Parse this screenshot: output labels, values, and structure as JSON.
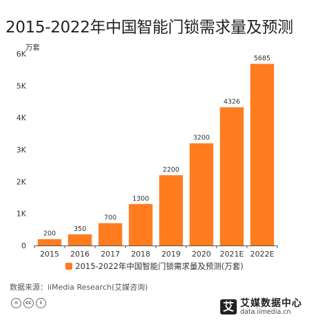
{
  "title": "2015-2022年中国智能门锁需求量及预测",
  "chart_data": {
    "type": "bar",
    "title": "2015-2022年中国智能门锁需求量及预测",
    "unit_label": "万套",
    "categories": [
      "2015",
      "2016",
      "2017",
      "2018",
      "2019",
      "2020",
      "2021E",
      "2022E"
    ],
    "series": [
      {
        "name": "2015-2022年中国智能门锁需求量及预测(万套)",
        "values": [
          200,
          350,
          700,
          1300,
          2200,
          3200,
          4326,
          5685
        ],
        "color": "#FF7C1F"
      }
    ],
    "ylim": [
      0,
      6000
    ],
    "yticks": [
      0,
      1000,
      2000,
      3000,
      4000,
      5000,
      6000
    ],
    "ytick_labels": [
      "0",
      "1K",
      "2K",
      "3K",
      "4K",
      "5K",
      "6K"
    ],
    "grid": false,
    "legend_position": "bottom"
  },
  "legend_label": "2015-2022年中国智能门锁需求量及预测(万套)",
  "source": "数据来源：iiMedia Research(艾媒咨询)",
  "license_badges": [
    "=",
    "cc",
    "i"
  ],
  "logo": {
    "mark": "艾",
    "name": "艾媒数据中心",
    "url": "data.iimedia.cn"
  }
}
